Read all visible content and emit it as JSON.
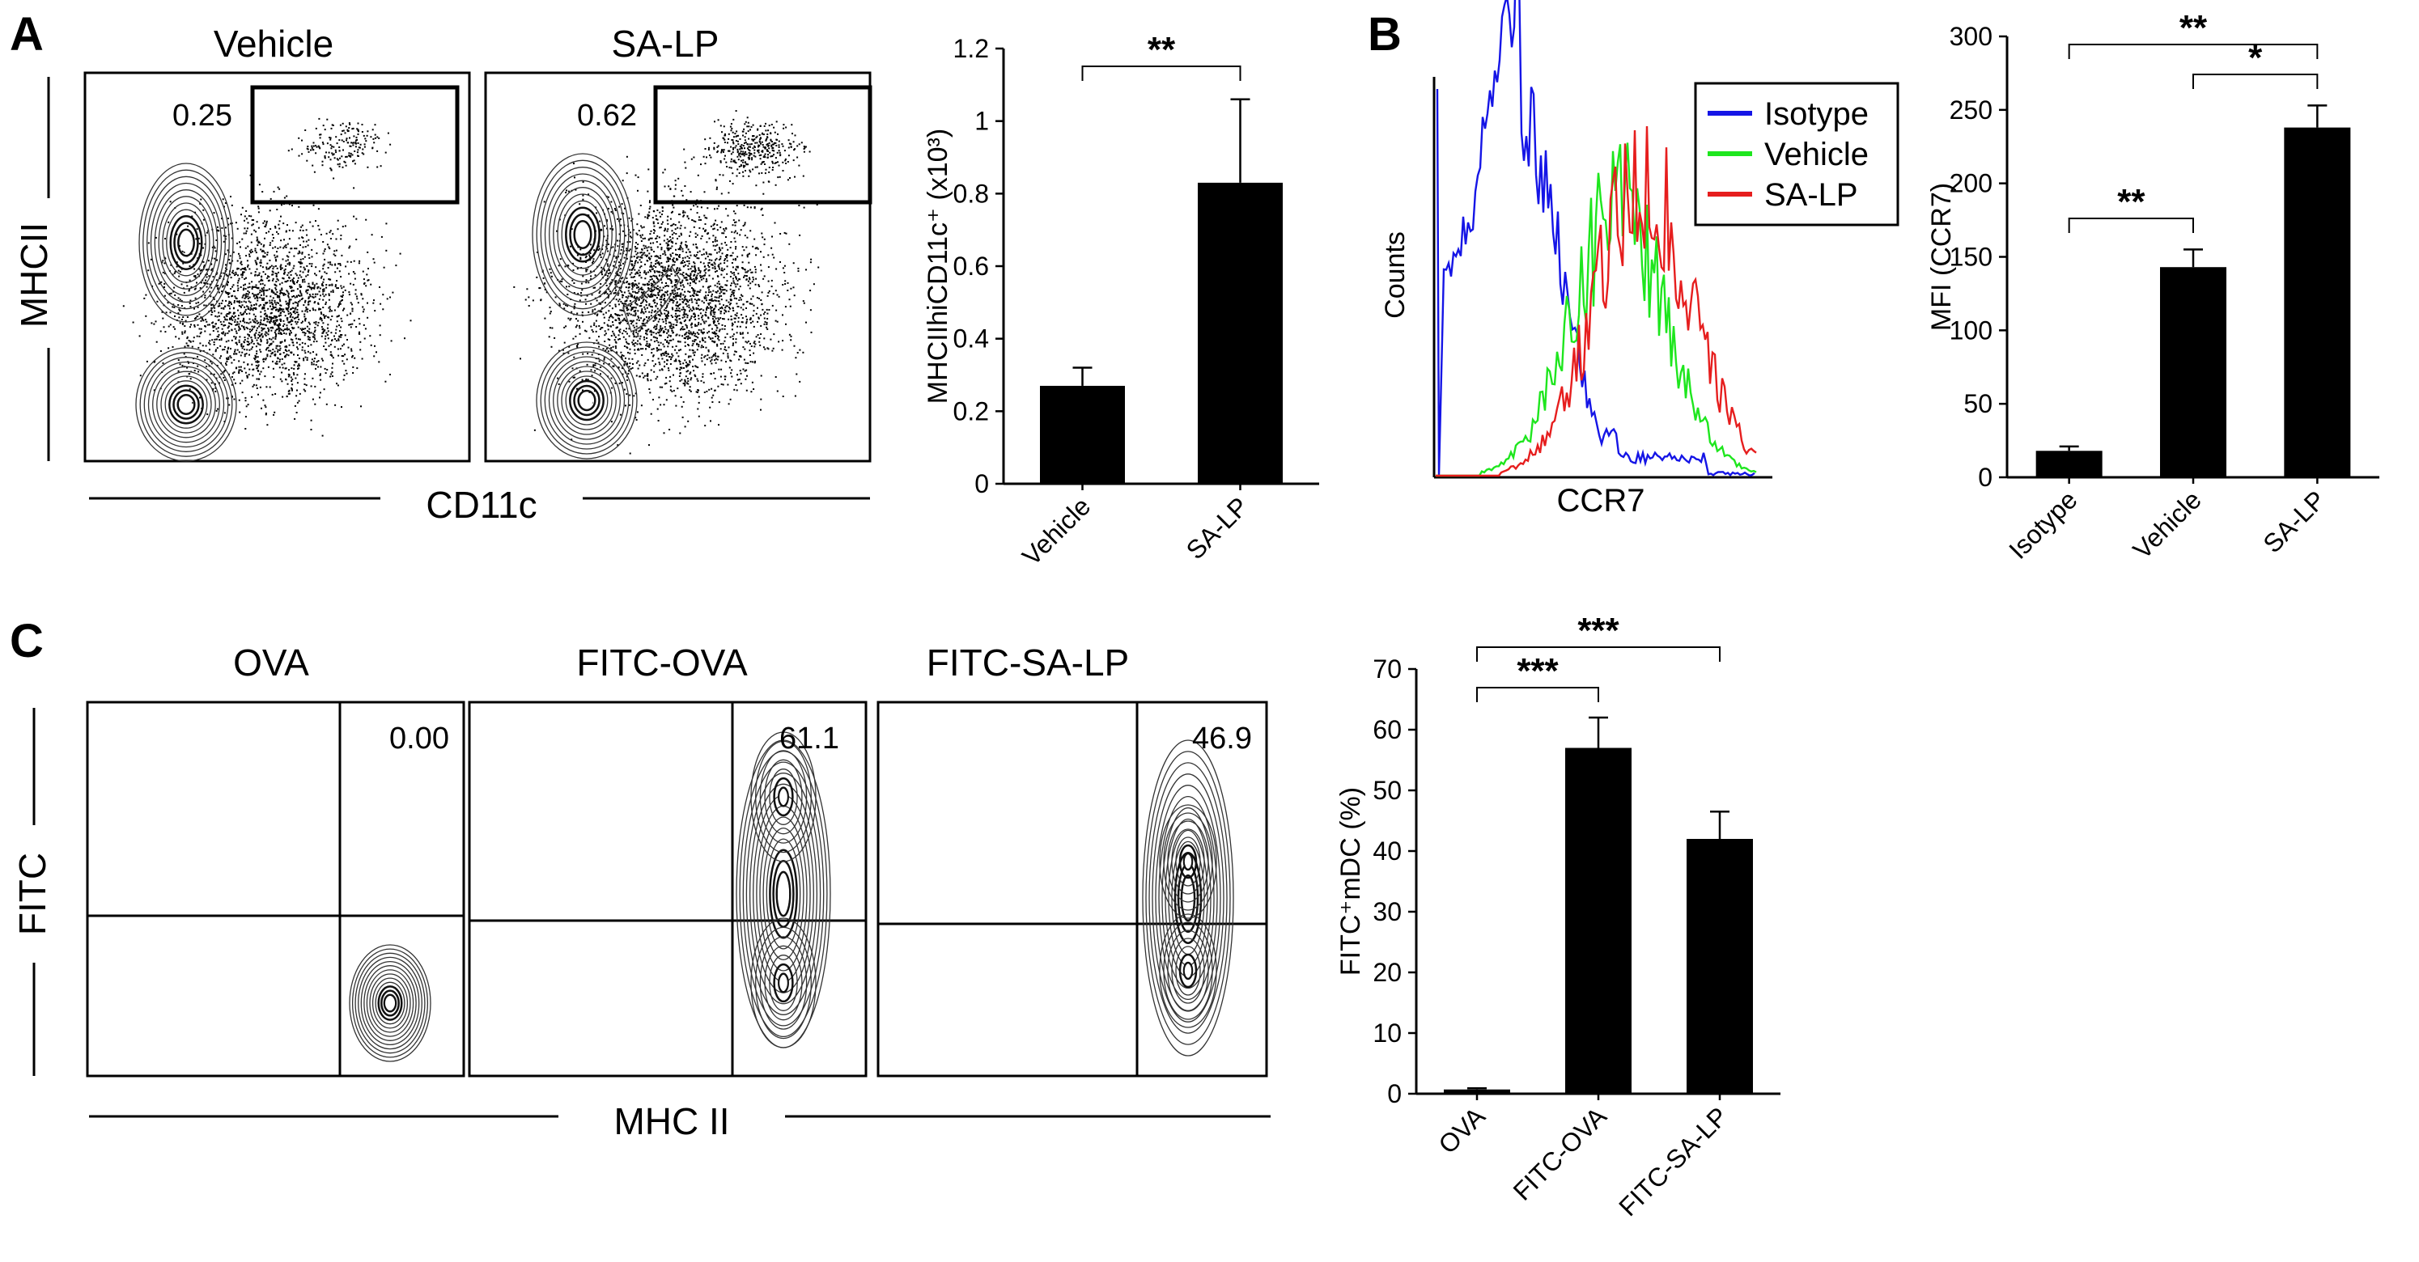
{
  "panels": {
    "A": {
      "letter": "A",
      "flow": {
        "titles": [
          "Vehicle",
          "SA-LP"
        ],
        "gate_values": [
          "0.25",
          "0.62"
        ],
        "xlabel": "CD11c",
        "ylabel": "MHCII"
      }
    },
    "B": {
      "letter": "B",
      "histogram": {
        "xlabel": "CCR7",
        "ylabel": "Counts",
        "legend": [
          {
            "name": "Isotype",
            "color": "#1515e6"
          },
          {
            "name": "Vehicle",
            "color": "#1ee61e"
          },
          {
            "name": "SA-LP",
            "color": "#e61e1e"
          }
        ]
      }
    },
    "C": {
      "letter": "C",
      "flow": {
        "titles": [
          "OVA",
          "FITC-OVA",
          "FITC-SA-LP"
        ],
        "quadrant_values": [
          "0.00",
          "61.1",
          "46.9"
        ],
        "xlabel": "MHC II",
        "ylabel": "FITC"
      }
    }
  },
  "chart_data": [
    {
      "id": "A-bar",
      "type": "bar",
      "categories": [
        "Vehicle",
        "SA-LP"
      ],
      "values": [
        0.27,
        0.83
      ],
      "errors": [
        0.05,
        0.23
      ],
      "ylabel": "MHCIIhiCD11c⁺ (x10³)",
      "ylim": [
        0,
        1.2
      ],
      "yticks": [
        "0",
        "0.2",
        "0.4",
        "0.6",
        "0.8",
        "1",
        "1.2"
      ],
      "significance": [
        {
          "from": 0,
          "to": 1,
          "label": "**"
        }
      ]
    },
    {
      "id": "B-bar",
      "type": "bar",
      "categories": [
        "Isotype",
        "Vehicle",
        "SA-LP"
      ],
      "values": [
        18,
        143,
        238
      ],
      "errors": [
        3,
        12,
        15
      ],
      "ylabel": "MFI (CCR7)",
      "ylim": [
        0,
        300
      ],
      "yticks": [
        "0",
        "50",
        "100",
        "150",
        "200",
        "250",
        "300"
      ],
      "significance": [
        {
          "from": 0,
          "to": 1,
          "label": "**"
        },
        {
          "from": 1,
          "to": 2,
          "label": "*"
        },
        {
          "from": 0,
          "to": 2,
          "label": "**"
        }
      ]
    },
    {
      "id": "C-bar",
      "type": "bar",
      "categories": [
        "OVA",
        "FITC-OVA",
        "FITC-SA-LP"
      ],
      "values": [
        0.7,
        57,
        42
      ],
      "errors": [
        0.2,
        5,
        4.5
      ],
      "ylabel": "FITC⁺mDC (%)",
      "ylim": [
        0,
        70
      ],
      "yticks": [
        "0",
        "10",
        "20",
        "30",
        "40",
        "50",
        "60",
        "70"
      ],
      "significance": [
        {
          "from": 0,
          "to": 1,
          "label": "***"
        },
        {
          "from": 0,
          "to": 2,
          "label": "***"
        }
      ]
    }
  ]
}
